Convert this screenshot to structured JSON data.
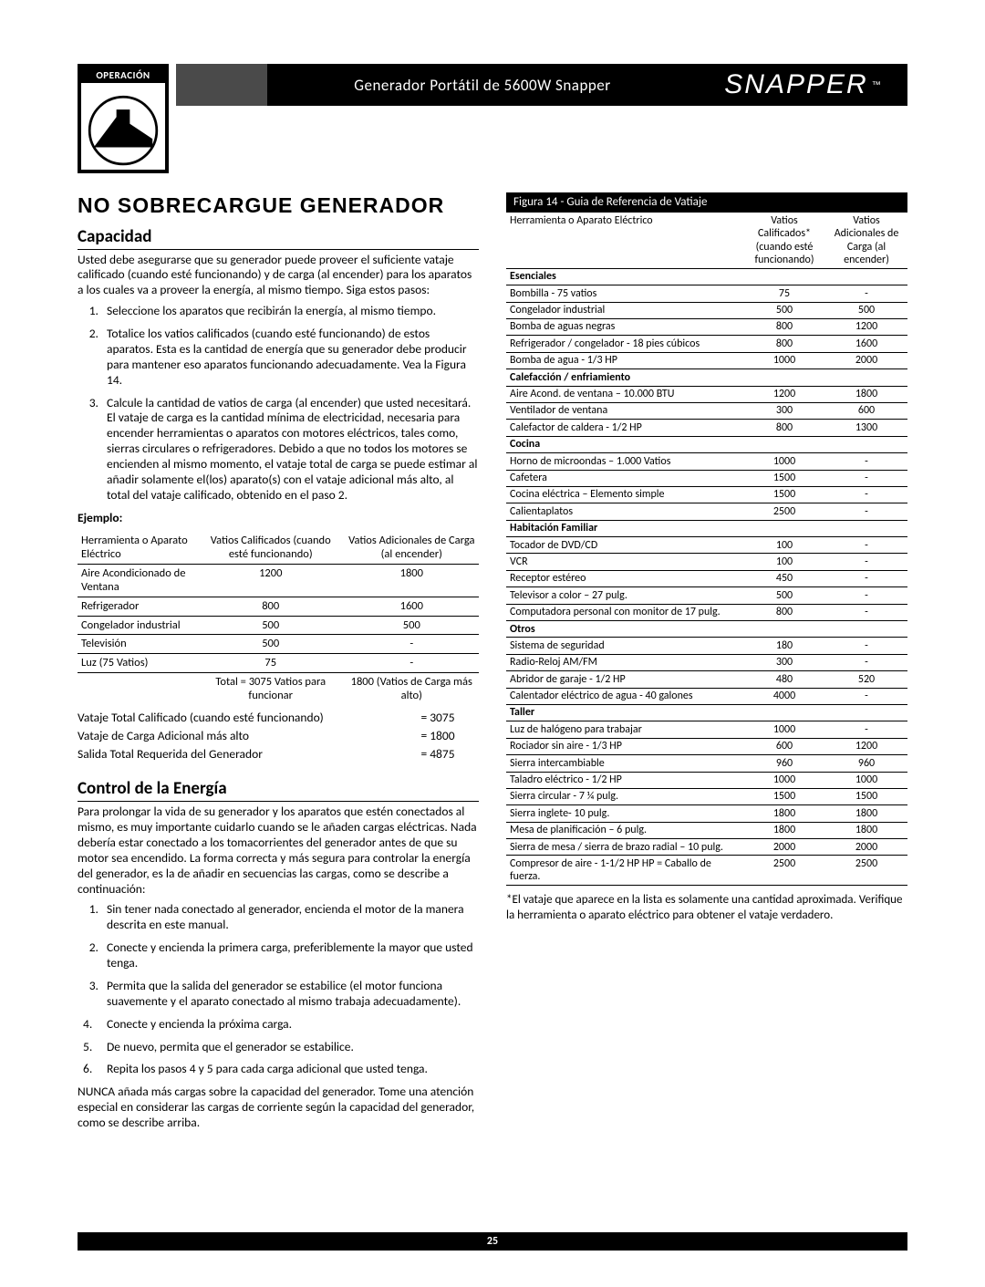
{
  "badge_label": "OPERACIÓN",
  "header_title": "Generador Portátil de 5600W Snapper",
  "brand": "SNAPPER",
  "page_number": "25",
  "main_heading": "NO SOBRECARGUE GENERADOR",
  "section1_title": "Capacidad",
  "section1_intro": "Usted debe asegurarse que su generador puede proveer el suficiente vataje calificado (cuando esté funcionando) y de carga (al encender) para los aparatos a los cuales va a proveer la energía, al mismo tiempo. Siga estos pasos:",
  "cap_steps": [
    "Seleccione los aparatos que recibirán la energía, al mismo tiempo.",
    "Totalice los vatios calificados (cuando esté funcionando) de estos aparatos. Esta es la cantidad de energía que su generador debe producir para mantener eso aparatos funcionando adecuadamente. Vea la Figura 14.",
    "Calcule la cantidad de vatios de carga (al encender) que usted necesitará. El vataje de carga es la cantidad mínima de electricidad, necesaria para encender  herramientas o aparatos con motores eléctricos, tales como, sierras circulares o refrigeradores. Debido a que no todos los motores se encienden al mismo momento, el vataje total de carga se puede estimar al añadir solamente el(los) aparato(s) con el vataje adicional más alto, al total del vataje calificado, obtenido en el paso 2."
  ],
  "ejemplo_label": "Ejemplo:",
  "ex_headers": [
    "Herramienta o Aparato Eléctrico",
    "Vatios Calificados (cuando esté funcionando)",
    "Vatios Adicionales de Carga (al encender)"
  ],
  "ex_rows": [
    [
      "Aire Acondicionado de Ventana",
      "1200",
      "1800"
    ],
    [
      "Refrigerador",
      "800",
      "1600"
    ],
    [
      "Congelador industrial",
      "500",
      "500"
    ],
    [
      "Televisión",
      "500",
      "-"
    ],
    [
      "Luz (75 Vatios)",
      "75",
      "-"
    ]
  ],
  "ex_footer": [
    "",
    "Total = 3075 Vatios para funcionar",
    "1800 (Vatios de Carga más alto)"
  ],
  "totals": [
    [
      "Vataje Total Calificado (cuando esté funcionando)",
      "= 3075"
    ],
    [
      "Vataje de Carga Adicional más alto",
      "= 1800"
    ],
    [
      "Salida Total Requerida del Generador",
      "= 4875"
    ]
  ],
  "section2_title": "Control de la Energía",
  "section2_intro": "Para prolongar la vida de su generador y los aparatos que estén conectados al mismo, es muy importante cuidarlo cuando se le añaden cargas eléctricas. Nada debería estar conectado a los tomacorrientes del generador antes de que su motor sea encendido. La forma correcta y más segura para controlar la energía del generador, es la de añadir en secuencias las cargas, como se describe a continuación:",
  "ctrl_steps": [
    "Sin tener nada conectado al generador, encienda el motor de la manera descrita en este manual.",
    "Conecte y encienda la primera carga, preferiblemente la mayor que usted tenga.",
    "Permita que la salida del generador se estabilice (el motor funciona suavemente y el aparato conectado al mismo trabaja adecuadamente)."
  ],
  "ctrl_steps_cont": [
    [
      "4.",
      "Conecte y encienda la próxima carga."
    ],
    [
      "5.",
      "De nuevo, permita que el generador se estabilice."
    ],
    [
      "6.",
      "Repita los pasos 4 y 5 para cada carga adicional que usted tenga."
    ]
  ],
  "section2_note": "NUNCA añada más cargas sobre la capacidad del generador. Tome una atención especial en considerar las cargas de corriente según la capacidad del generador, como se describe arriba.",
  "fig_title": "Figura 14 - Guia de Referencia de Vatiaje",
  "ref_headers": [
    "Herramienta o Aparato Eléctrico",
    "Vatios Calificados* (cuando esté funcionando)",
    "Vatios Adicionales de Carga (al encender)"
  ],
  "ref_rows": [
    {
      "section": "Esenciales"
    },
    {
      "r": [
        "Bombilla - 75 vatios",
        "75",
        "-"
      ]
    },
    {
      "r": [
        "Congelador industrial",
        "500",
        "500"
      ]
    },
    {
      "r": [
        "Bomba de aguas negras",
        "800",
        "1200"
      ]
    },
    {
      "r": [
        "Refrigerador / congelador - 18 pies cúbicos",
        "800",
        "1600"
      ]
    },
    {
      "r": [
        "Bomba de agua - 1/3 HP",
        "1000",
        "2000"
      ]
    },
    {
      "section": "Calefacción / enfriamiento"
    },
    {
      "r": [
        "Aire Acond. de ventana – 10.000 BTU",
        "1200",
        "1800"
      ]
    },
    {
      "r": [
        "Ventilador de ventana",
        "300",
        "600"
      ]
    },
    {
      "r": [
        "Calefactor de caldera  - 1/2 HP",
        "800",
        "1300"
      ]
    },
    {
      "section": "Cocina"
    },
    {
      "r": [
        "Horno de microondas – 1.000 Vatios",
        "1000",
        "-"
      ]
    },
    {
      "r": [
        "Cafetera",
        "1500",
        "-"
      ]
    },
    {
      "r": [
        "Cocina eléctrica – Elemento simple",
        "1500",
        "-"
      ]
    },
    {
      "r": [
        "Calientaplatos",
        "2500",
        "-"
      ]
    },
    {
      "section": "Habitación Familiar"
    },
    {
      "r": [
        "Tocador de DVD/CD",
        "100",
        "-"
      ]
    },
    {
      "r": [
        "VCR",
        "100",
        "-"
      ]
    },
    {
      "r": [
        "Receptor estéreo",
        "450",
        "-"
      ]
    },
    {
      "r": [
        "Televisor a color – 27 pulg.",
        "500",
        "-"
      ]
    },
    {
      "r": [
        "Computadora personal con monitor de 17 pulg.",
        "800",
        "-"
      ]
    },
    {
      "section": "Otros"
    },
    {
      "r": [
        "Sistema de seguridad",
        "180",
        "-"
      ]
    },
    {
      "r": [
        "Radio-Reloj AM/FM",
        "300",
        "-"
      ]
    },
    {
      "r": [
        "Abridor de garaje - 1/2 HP",
        "480",
        "520"
      ]
    },
    {
      "r": [
        "Calentador eléctrico de agua - 40 galones",
        "4000",
        "-"
      ]
    },
    {
      "section": "Taller"
    },
    {
      "r": [
        "Luz de halógeno para trabajar",
        "1000",
        "-"
      ]
    },
    {
      "r": [
        "Rociador sin aire - 1/3 HP",
        "600",
        "1200"
      ]
    },
    {
      "r": [
        "Sierra intercambiable",
        "960",
        "960"
      ]
    },
    {
      "r": [
        "Taladro eléctrico - 1/2 HP",
        "1000",
        "1000"
      ]
    },
    {
      "r": [
        "Sierra circular - 7 ¼ pulg.",
        "1500",
        "1500"
      ]
    },
    {
      "r": [
        "Sierra inglete- 10 pulg.",
        "1800",
        "1800"
      ]
    },
    {
      "r": [
        "Mesa de planificación – 6 pulg.",
        "1800",
        "1800"
      ]
    },
    {
      "r": [
        "Sierra de mesa / sierra de brazo radial – 10 pulg.",
        "2000",
        "2000"
      ]
    },
    {
      "r": [
        "Compresor de aire - 1-1/2 HP HP = Caballo de fuerza.",
        "2500",
        "2500"
      ]
    }
  ],
  "footnote": "*El vataje que aparece en la lista es solamente una cantidad aproximada. Verifique la herramienta o aparato eléctrico para obtener el vataje verdadero."
}
